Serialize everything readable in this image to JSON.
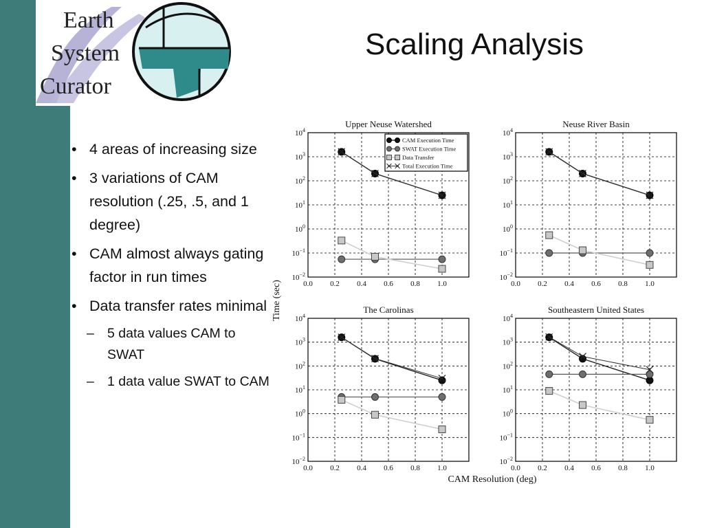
{
  "slide": {
    "title": "Scaling Analysis"
  },
  "logo": {
    "line1": "Earth",
    "line2": "System",
    "line3": "Curator"
  },
  "bullets": [
    {
      "level": 1,
      "text": "4 areas of increasing size"
    },
    {
      "level": 1,
      "text": "3 variations of CAM resolution (.25, .5, and 1 degree)"
    },
    {
      "level": 1,
      "text": "CAM almost always gating factor in run times"
    },
    {
      "level": 1,
      "text": "Data transfer rates minimal"
    },
    {
      "level": 2,
      "text": "5 data values CAM to SWAT"
    },
    {
      "level": 2,
      "text": "1 data value SWAT to CAM"
    }
  ],
  "colors": {
    "sidebar": "#3e7c7a",
    "cam": "#111111",
    "swat": "#6e6e6e",
    "data_transfer": "#c8c8c8",
    "total": "#333333"
  },
  "chart_data": [
    {
      "type": "line",
      "title": "Upper Neuse Watershed",
      "x": [
        0.25,
        0.5,
        1.0
      ],
      "xlim": [
        0.0,
        1.2
      ],
      "ylim": [
        0.01,
        10000
      ],
      "yscale": "log",
      "grid": true,
      "legend": "top-right",
      "series": [
        {
          "name": "CAM Execution Time",
          "values": [
            1600,
            200,
            25
          ]
        },
        {
          "name": "SWAT Execution Time",
          "values": [
            0.055,
            0.055,
            0.055
          ]
        },
        {
          "name": "Data Transfer",
          "values": [
            0.33,
            0.07,
            0.022
          ]
        },
        {
          "name": "Total Execution Time",
          "values": [
            1600,
            200,
            25
          ]
        }
      ]
    },
    {
      "type": "line",
      "title": "Neuse River Basin",
      "x": [
        0.25,
        0.5,
        1.0
      ],
      "xlim": [
        0.0,
        1.2
      ],
      "ylim": [
        0.01,
        10000
      ],
      "yscale": "log",
      "grid": true,
      "series": [
        {
          "name": "CAM Execution Time",
          "values": [
            1600,
            200,
            25
          ]
        },
        {
          "name": "SWAT Execution Time",
          "values": [
            0.1,
            0.1,
            0.1
          ]
        },
        {
          "name": "Data Transfer",
          "values": [
            0.55,
            0.13,
            0.032
          ]
        },
        {
          "name": "Total Execution Time",
          "values": [
            1600,
            200,
            25
          ]
        }
      ]
    },
    {
      "type": "line",
      "title": "The Carolinas",
      "x": [
        0.25,
        0.5,
        1.0
      ],
      "xlim": [
        0.0,
        1.2
      ],
      "ylim": [
        0.01,
        10000
      ],
      "yscale": "log",
      "grid": true,
      "series": [
        {
          "name": "CAM Execution Time",
          "values": [
            1600,
            200,
            25
          ]
        },
        {
          "name": "SWAT Execution Time",
          "values": [
            5,
            5,
            5
          ]
        },
        {
          "name": "Data Transfer",
          "values": [
            3.8,
            0.9,
            0.22
          ]
        },
        {
          "name": "Total Execution Time",
          "values": [
            1600,
            205,
            30
          ]
        }
      ]
    },
    {
      "type": "line",
      "title": "Southeastern United States",
      "x": [
        0.25,
        0.5,
        1.0
      ],
      "xlim": [
        0.0,
        1.2
      ],
      "ylim": [
        0.01,
        10000
      ],
      "yscale": "log",
      "grid": true,
      "series": [
        {
          "name": "CAM Execution Time",
          "values": [
            1600,
            200,
            25
          ]
        },
        {
          "name": "SWAT Execution Time",
          "values": [
            45,
            45,
            45
          ]
        },
        {
          "name": "Data Transfer",
          "values": [
            9,
            2.3,
            0.55
          ]
        },
        {
          "name": "Total Execution Time",
          "values": [
            1650,
            250,
            70
          ]
        }
      ]
    }
  ],
  "axes": {
    "ylabel": "Time (sec)",
    "xlabel": "CAM Resolution (deg)",
    "xticks": [
      "0.0",
      "0.2",
      "0.4",
      "0.6",
      "0.8",
      "1.0"
    ],
    "yticks": [
      {
        "base": "10",
        "exp": "4"
      },
      {
        "base": "10",
        "exp": "3"
      },
      {
        "base": "10",
        "exp": "2"
      },
      {
        "base": "10",
        "exp": "1"
      },
      {
        "base": "10",
        "exp": "0"
      },
      {
        "base": "10",
        "exp": "−1"
      },
      {
        "base": "10",
        "exp": "−2"
      }
    ]
  }
}
